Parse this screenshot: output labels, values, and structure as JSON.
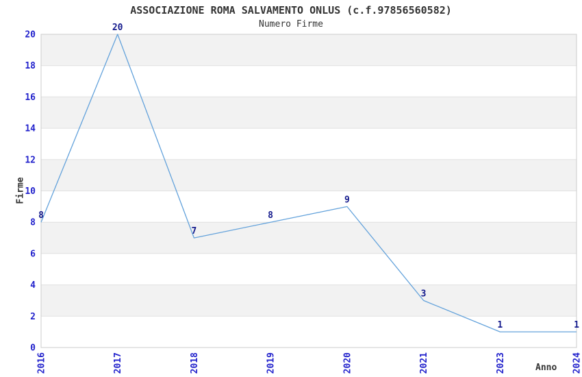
{
  "chart_data": {
    "type": "line",
    "title": "ASSOCIAZIONE ROMA SALVAMENTO ONLUS (c.f.97856560582)",
    "subtitle": "Numero Firme",
    "xlabel": "Anno",
    "ylabel": "Firme",
    "categories": [
      "2016",
      "2017",
      "2018",
      "2019",
      "2020",
      "2021",
      "2023",
      "2024"
    ],
    "values": [
      8,
      20,
      7,
      8,
      9,
      3,
      1,
      1
    ],
    "point_labels": [
      "8",
      "20",
      "7",
      "8",
      "9",
      "3",
      "1",
      "1"
    ],
    "ylim": [
      0,
      20
    ],
    "ytick_step": 2,
    "grid": true,
    "legend": "none",
    "banded_background": true,
    "colors": {
      "line": "#63a2db",
      "tick_labels": "#2222cc",
      "point_labels": "#151b8d",
      "band": "#f2f2f2",
      "gridline": "#e0e0e0",
      "frame": "#cccccc",
      "text": "#333333",
      "background": "#ffffff"
    }
  }
}
